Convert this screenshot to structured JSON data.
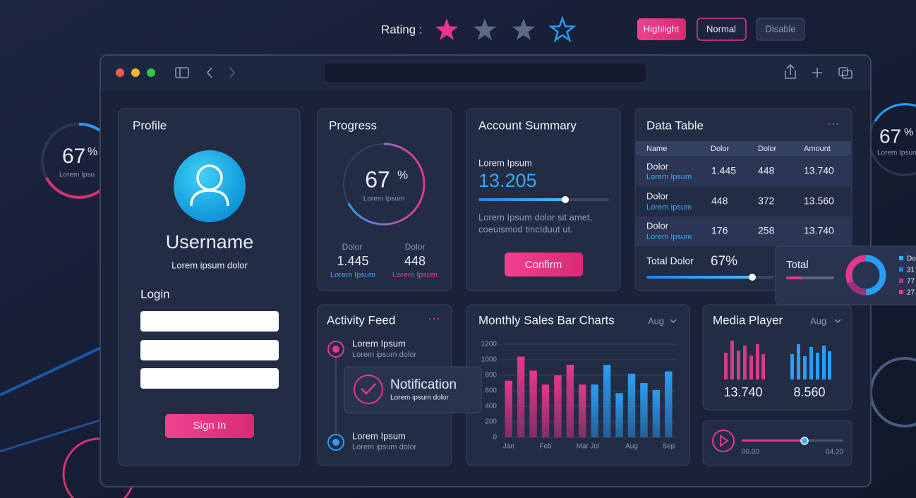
{
  "rating": {
    "label": "Rating :"
  },
  "buttons": [
    "Highlight",
    "Normal",
    "Disable"
  ],
  "side_left": {
    "value": "67",
    "unit": "%",
    "caption": "Lorem Ipsu"
  },
  "side_right": {
    "value": "67",
    "unit": "%",
    "caption": "Lorem Ipsum"
  },
  "profile": {
    "title": "Profile",
    "username": "Username",
    "subtitle": "Lorem ipsum dolor",
    "login": "Login",
    "button": "Sign In"
  },
  "progress": {
    "title": "Progress",
    "value": 67,
    "unit": "%",
    "caption": "Lorem Ipsum",
    "stats": [
      {
        "label": "Dolor",
        "value": "1.445",
        "sub": "Lorem Ipsum"
      },
      {
        "label": "Dolor",
        "value": "448",
        "sub": "Lorem Ipsum"
      }
    ]
  },
  "account": {
    "title": "Account Summary",
    "label": "Lorem Ipsum",
    "amount": "13.205",
    "text": [
      "Lorem Ipsum dolor sit amet,",
      "coeuismod tincIduut ut."
    ],
    "button": "Confirm"
  },
  "table": {
    "title": "Data Table",
    "headers": [
      "Name",
      "Dolor",
      "Dolor",
      "Amount"
    ],
    "rows": [
      {
        "name": "Dolor",
        "sub": "Lorem Ipsum",
        "cells": [
          "1.445",
          "448",
          "13.740"
        ]
      },
      {
        "name": "Dolor",
        "sub": "Lorem Ipsum",
        "cells": [
          "448",
          "372",
          "13.560"
        ]
      },
      {
        "name": "Dolor",
        "sub": "Lorem Ipsum",
        "cells": [
          "176",
          "258",
          "13.740"
        ]
      }
    ],
    "total_label": "Total Dolor",
    "total_value": "67%"
  },
  "total_popup": {
    "title": "Total",
    "legend": [
      "Do",
      "31",
      "77",
      "27"
    ]
  },
  "activity": {
    "title": "Activity Feed",
    "items": [
      {
        "title": "Lorem Ipsum",
        "sub": "Lorem ipsum dolor"
      },
      {
        "title": "Lorem Ipsum",
        "sub": "Lorem ipsum dolor"
      }
    ]
  },
  "notification": {
    "title": "Notification",
    "sub": "Lorem ipsum dolor"
  },
  "chart_data": {
    "type": "bar",
    "title": "Monthly Sales Bar Charts",
    "categories": [
      "Jan",
      null,
      null,
      "Feb",
      null,
      null,
      "Mar",
      "Jul",
      null,
      null,
      "Aug",
      null,
      null,
      "Sep"
    ],
    "values": [
      730,
      1040,
      860,
      680,
      800,
      935,
      680,
      680,
      935,
      570,
      820,
      700,
      610,
      850
    ],
    "colors": [
      "#e8368a",
      "#e8368a",
      "#e8368a",
      "#e8368a",
      "#e8368a",
      "#e8368a",
      "#e8368a",
      "#2a9df4",
      "#2a9df4",
      "#2a9df4",
      "#2a9df4",
      "#2a9df4",
      "#2a9df4",
      "#2a9df4"
    ],
    "ylim": [
      0,
      1200
    ],
    "yticks": [
      0,
      200,
      400,
      600,
      800,
      1000,
      1200
    ],
    "grid": true
  },
  "sales_filter": "Aug",
  "media": {
    "title": "Media Player",
    "filter": "Aug",
    "values": [
      "13.740",
      "8.560"
    ],
    "time_start": "00.00",
    "time_end": "04.20"
  }
}
